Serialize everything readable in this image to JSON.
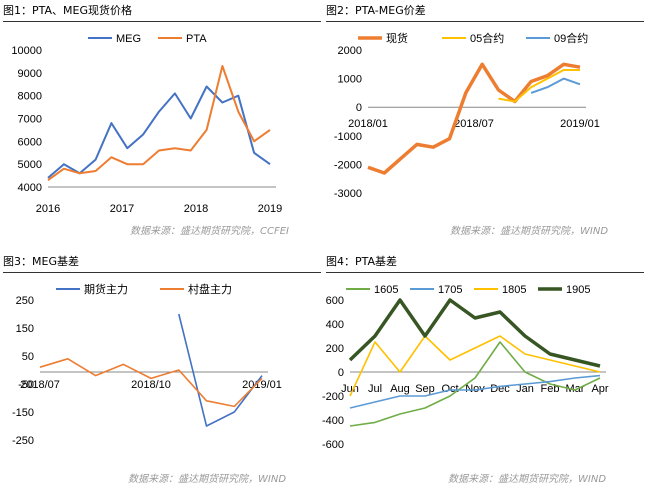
{
  "panels": [
    {
      "id": "p1",
      "title": "图1：PTA、MEG现货价格",
      "source": "数据来源：盛达期货研究院，CCFEI"
    },
    {
      "id": "p2",
      "title": "图2：PTA-MEG价差",
      "source": "数据来源：盛达期货研究院，WIND"
    },
    {
      "id": "p3",
      "title": "图3：MEG基差",
      "source": ""
    },
    {
      "id": "p4",
      "title": "图4：PTA基差",
      "source": ""
    }
  ],
  "bottom_sources": {
    "left": "数据来源：盛达期货研究院，WIND",
    "right": "数据来源：盛达期货研究院，WIND"
  },
  "chart_data": [
    {
      "type": "line",
      "title": "图1：PTA、MEG现货价格",
      "ylim": [
        4000,
        10000
      ],
      "yticks": [
        4000,
        5000,
        6000,
        7000,
        8000,
        9000,
        10000
      ],
      "xticks": [
        "2016",
        "2017",
        "2018",
        "2019"
      ],
      "x": [
        "2016-01",
        "2016-04",
        "2016-07",
        "2016-10",
        "2017-01",
        "2017-04",
        "2017-07",
        "2017-10",
        "2018-01",
        "2018-04",
        "2018-07",
        "2018-09",
        "2018-10",
        "2019-01",
        "2019-03"
      ],
      "series": [
        {
          "name": "MEG",
          "color": "#4472c4",
          "values": [
            4400,
            5000,
            4600,
            5200,
            6800,
            5700,
            6300,
            7300,
            8100,
            7000,
            8400,
            7700,
            8000,
            5500,
            5000
          ]
        },
        {
          "name": "PTA",
          "color": "#ed7d31",
          "values": [
            4300,
            4800,
            4600,
            4700,
            5300,
            5000,
            5000,
            5600,
            5700,
            5600,
            6500,
            9300,
            7300,
            6000,
            6500
          ]
        }
      ]
    },
    {
      "type": "line",
      "title": "图2：PTA-MEG价差",
      "ylim": [
        -3000,
        2000
      ],
      "yticks": [
        -3000,
        -2000,
        -1000,
        0,
        1000,
        2000
      ],
      "xticks": [
        "2018/01",
        "2018/07",
        "2019/01"
      ],
      "x": [
        "2017-09",
        "2017-11",
        "2018-01",
        "2018-03",
        "2018-05",
        "2018-07",
        "2018-08",
        "2018-09",
        "2018-10",
        "2018-11",
        "2018-12",
        "2019-01",
        "2019-02",
        "2019-03"
      ],
      "series": [
        {
          "name": "现货",
          "color": "#ed7d31",
          "values": [
            -2100,
            -2300,
            -1800,
            -1300,
            -1400,
            -1100,
            500,
            1500,
            600,
            200,
            900,
            1100,
            1500,
            1400
          ]
        },
        {
          "name": "05合约",
          "color": "#ffc000",
          "values": [
            null,
            null,
            null,
            null,
            null,
            null,
            null,
            null,
            300,
            200,
            700,
            1000,
            1300,
            1300
          ]
        },
        {
          "name": "09合约",
          "color": "#5b9bd5",
          "values": [
            null,
            null,
            null,
            null,
            null,
            null,
            null,
            null,
            null,
            null,
            500,
            700,
            1000,
            800
          ]
        }
      ]
    },
    {
      "type": "line",
      "title": "图3：MEG基差",
      "ylim": [
        -250,
        250
      ],
      "yticks": [
        -250,
        -150,
        -50,
        50,
        150,
        250
      ],
      "xticks": [
        "2018/07",
        "2018/10",
        "2019/01"
      ],
      "x": [
        "2018-07",
        "2018-08",
        "2018-09",
        "2018-10",
        "2018-11",
        "2018-12",
        "2019-01",
        "2019-02",
        "2019-03"
      ],
      "series": [
        {
          "name": "期货主力",
          "color": "#4472c4",
          "values": [
            null,
            null,
            null,
            null,
            null,
            200,
            -200,
            -150,
            -20
          ]
        },
        {
          "name": "村盘主力",
          "color": "#ed7d31",
          "values": [
            10,
            40,
            -20,
            20,
            -30,
            0,
            -110,
            -130,
            -30
          ]
        }
      ]
    },
    {
      "type": "line",
      "title": "图4：PTA基差",
      "ylim": [
        -600,
        600
      ],
      "yticks": [
        -600,
        -400,
        -200,
        0,
        200,
        400,
        600
      ],
      "xticks": [
        "Jun",
        "Jul",
        "Aug",
        "Sep",
        "Oct",
        "Nov",
        "Dec",
        "Jan",
        "Feb",
        "Mar",
        "Apr"
      ],
      "x": [
        "Jun",
        "Jul",
        "Aug",
        "Sep",
        "Oct",
        "Nov",
        "Dec",
        "Jan",
        "Feb",
        "Mar",
        "Apr"
      ],
      "series": [
        {
          "name": "1605",
          "color": "#70ad47",
          "values": [
            -450,
            -420,
            -350,
            -300,
            -200,
            -50,
            250,
            0,
            -100,
            -150,
            -50
          ]
        },
        {
          "name": "1705",
          "color": "#5b9bd5",
          "values": [
            -300,
            -250,
            -200,
            -200,
            -150,
            -150,
            -120,
            -100,
            -80,
            -50,
            -30
          ]
        },
        {
          "name": "1805",
          "color": "#ffc000",
          "values": [
            -200,
            250,
            0,
            300,
            100,
            200,
            300,
            150,
            100,
            50,
            0
          ]
        },
        {
          "name": "1905",
          "color": "#375623",
          "values": [
            100,
            300,
            600,
            300,
            600,
            450,
            500,
            300,
            150,
            100,
            50
          ]
        }
      ]
    }
  ]
}
